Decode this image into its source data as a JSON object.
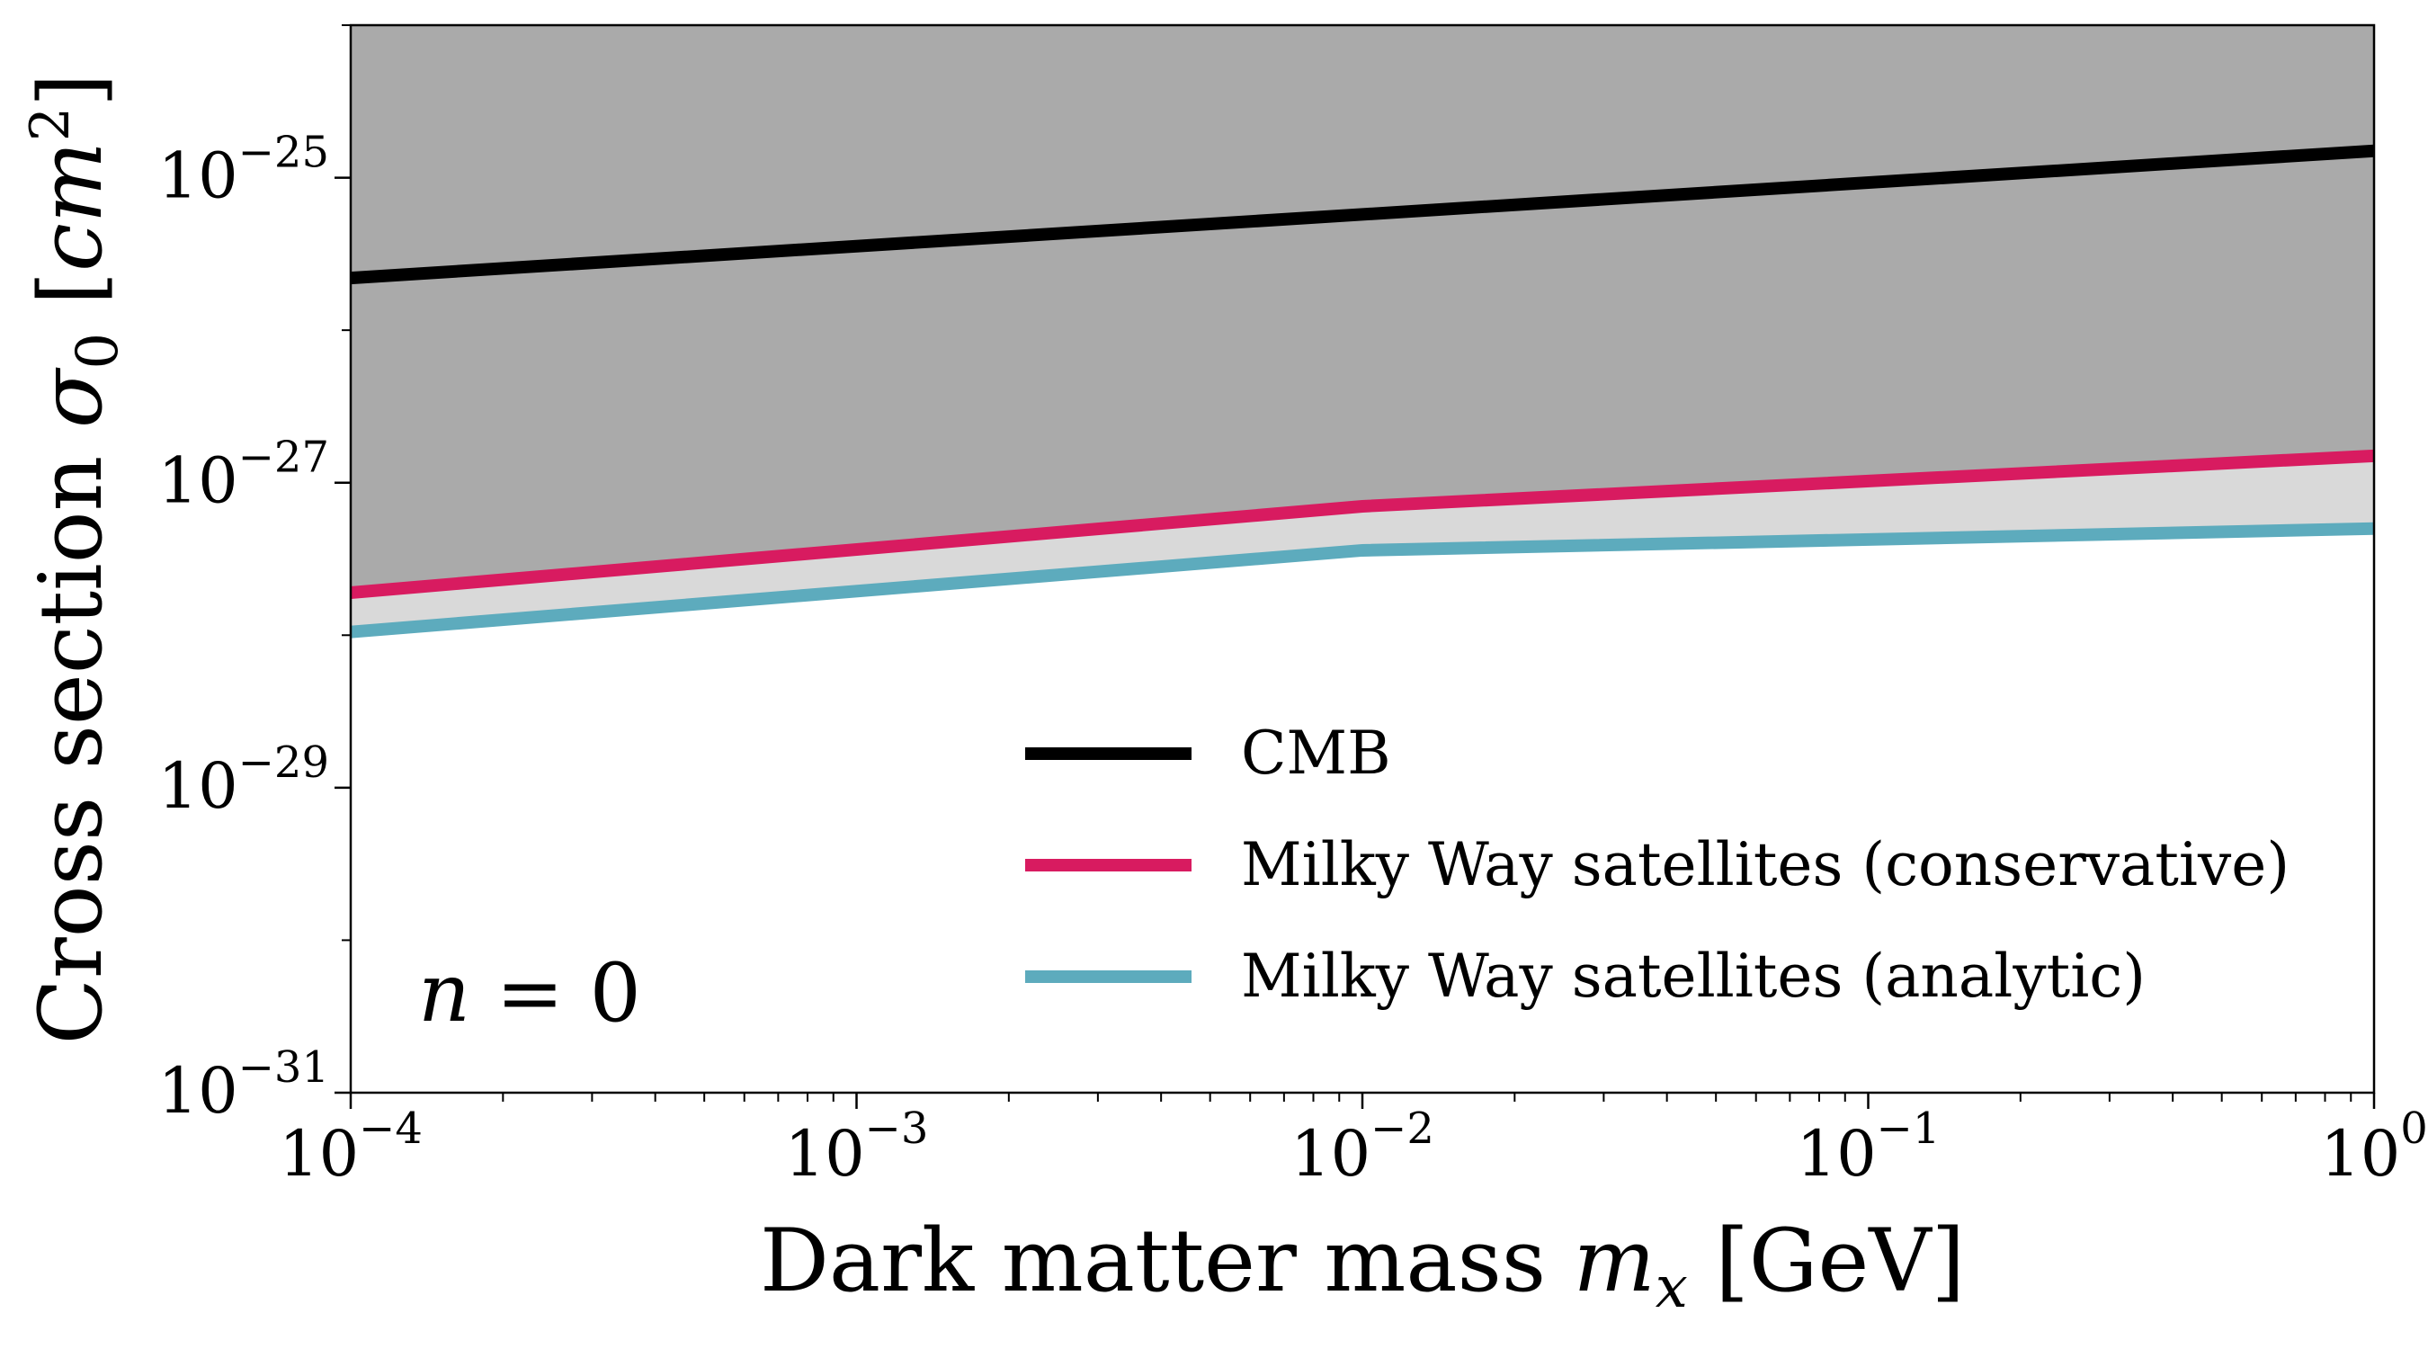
{
  "chart_data": {
    "type": "line",
    "x_scale": "log",
    "y_scale": "log",
    "xlim": [
      0.0001,
      1
    ],
    "ylim": [
      1e-31,
      1e-24
    ],
    "xlabel": "Dark matter mass m_x [GeV]",
    "xlabel_parts": {
      "text": "Dark matter mass ",
      "var": "m",
      "sub": "x",
      "unit": " [GeV]"
    },
    "ylabel": "Cross section σ_0 [cm^2]",
    "ylabel_parts": {
      "text": "Cross section ",
      "var": "σ",
      "sub": "0",
      "open": " [",
      "unit": "cm",
      "sup": "2",
      "close": "]"
    },
    "x_ticks": [
      {
        "base": "10",
        "exp": "−4",
        "value": 0.0001
      },
      {
        "base": "10",
        "exp": "−3",
        "value": 0.001
      },
      {
        "base": "10",
        "exp": "−2",
        "value": 0.01
      },
      {
        "base": "10",
        "exp": "−1",
        "value": 0.1
      },
      {
        "base": "10",
        "exp": "0",
        "value": 1
      }
    ],
    "y_ticks": [
      {
        "base": "10",
        "exp": "−31",
        "value": 1e-31
      },
      {
        "base": "10",
        "exp": "−29",
        "value": 1e-29
      },
      {
        "base": "10",
        "exp": "−27",
        "value": 1e-27
      },
      {
        "base": "10",
        "exp": "−25",
        "value": 1e-25
      }
    ],
    "annotation": {
      "var": "n",
      "rest": " = 0"
    },
    "legend_position": "lower-right",
    "series": [
      {
        "name": "CMB",
        "color": "#000000",
        "x": [
          0.0001,
          1
        ],
        "y": [
          2.2e-26,
          1.5e-25
        ]
      },
      {
        "name": "Milky Way satellites (conservative)",
        "color": "#d81b60",
        "x": [
          0.0001,
          0.01,
          1
        ],
        "y": [
          1.9e-28,
          7e-28,
          1.5e-27
        ]
      },
      {
        "name": "Milky Way satellites (analytic)",
        "color": "#5dabbd",
        "x": [
          0.0001,
          0.01,
          1
        ],
        "y": [
          1.05e-28,
          3.6e-28,
          5e-28
        ]
      }
    ],
    "regions": [
      {
        "label": "excluded",
        "color": "#aaaaaa",
        "lower_series": "Milky Way satellites (conservative)"
      },
      {
        "label": "band",
        "color": "#d9d9d9",
        "between": [
          "Milky Way satellites (analytic)",
          "Milky Way satellites (conservative)"
        ]
      }
    ]
  }
}
